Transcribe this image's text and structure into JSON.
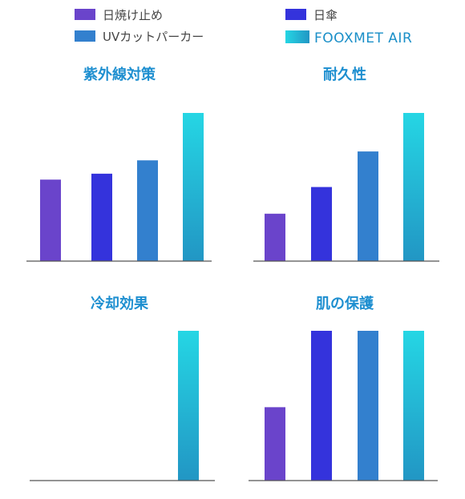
{
  "legend": [
    {
      "label": "日焼け止め",
      "color": "#6a44cb"
    },
    {
      "label": "日傘",
      "color": "#3433dc"
    },
    {
      "label": "UVカットパーカー",
      "color": "#3380ce"
    },
    {
      "label": "FOOXMET AIR",
      "color": "#22cde0",
      "highlight": true
    }
  ],
  "chart_data": [
    {
      "type": "bar",
      "title": "紫外線対策",
      "categories": [
        "日焼け止め",
        "日傘",
        "UVカットパーカー",
        "FOOXMET AIR"
      ],
      "values": [
        55,
        59,
        68,
        100
      ],
      "ylim": [
        0,
        100
      ],
      "grid": false
    },
    {
      "type": "bar",
      "title": "耐久性",
      "categories": [
        "日焼け止め",
        "日傘",
        "UVカットパーカー",
        "FOOXMET AIR"
      ],
      "values": [
        32,
        50,
        74,
        100
      ],
      "ylim": [
        0,
        100
      ],
      "grid": false
    },
    {
      "type": "bar",
      "title": "冷却効果",
      "categories": [
        "日焼け止め",
        "日傘",
        "UVカットパーカー",
        "FOOXMET AIR"
      ],
      "values": [
        0,
        0,
        0,
        100
      ],
      "ylim": [
        0,
        100
      ],
      "grid": false
    },
    {
      "type": "bar",
      "title": "肌の保護",
      "categories": [
        "日焼け止め",
        "日傘",
        "UVカットパーカー",
        "FOOXMET AIR"
      ],
      "values": [
        49,
        100,
        100,
        100
      ],
      "ylim": [
        0,
        100
      ],
      "grid": false
    }
  ]
}
